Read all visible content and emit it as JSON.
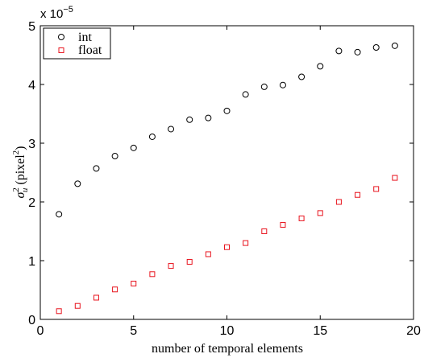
{
  "chart_data": {
    "type": "scatter",
    "x": [
      1,
      2,
      3,
      4,
      5,
      6,
      7,
      8,
      9,
      10,
      11,
      12,
      13,
      14,
      15,
      16,
      17,
      18,
      19
    ],
    "series": [
      {
        "name": "int",
        "marker": "circle",
        "color": "#000000",
        "values": [
          1.79,
          2.31,
          2.57,
          2.78,
          2.92,
          3.11,
          3.24,
          3.4,
          3.43,
          3.55,
          3.83,
          3.96,
          3.99,
          4.13,
          4.31,
          4.57,
          4.55,
          4.63,
          4.66
        ]
      },
      {
        "name": "float",
        "marker": "square",
        "color": "#e8141e",
        "values": [
          0.14,
          0.23,
          0.37,
          0.51,
          0.61,
          0.77,
          0.91,
          0.98,
          1.11,
          1.23,
          1.3,
          1.5,
          1.61,
          1.72,
          1.81,
          2.0,
          2.12,
          2.22,
          2.41
        ]
      }
    ],
    "xlabel": "number of temporal elements",
    "ylabel_main": "σ",
    "ylabel_sup": "2",
    "ylabel_sub": "u",
    "ylabel_rest": " (pixel",
    "ylabel_rest_sup": "2",
    "ylabel_rest_end": ")",
    "xlim": [
      0,
      20
    ],
    "ylim": [
      0,
      5
    ],
    "xticks": [
      0,
      5,
      10,
      15,
      20
    ],
    "yticks": [
      0,
      1,
      2,
      3,
      4,
      5
    ],
    "y_multiplier_base": "x 10",
    "y_multiplier_exp": "−5",
    "grid": false,
    "legend_position": "top-left"
  }
}
